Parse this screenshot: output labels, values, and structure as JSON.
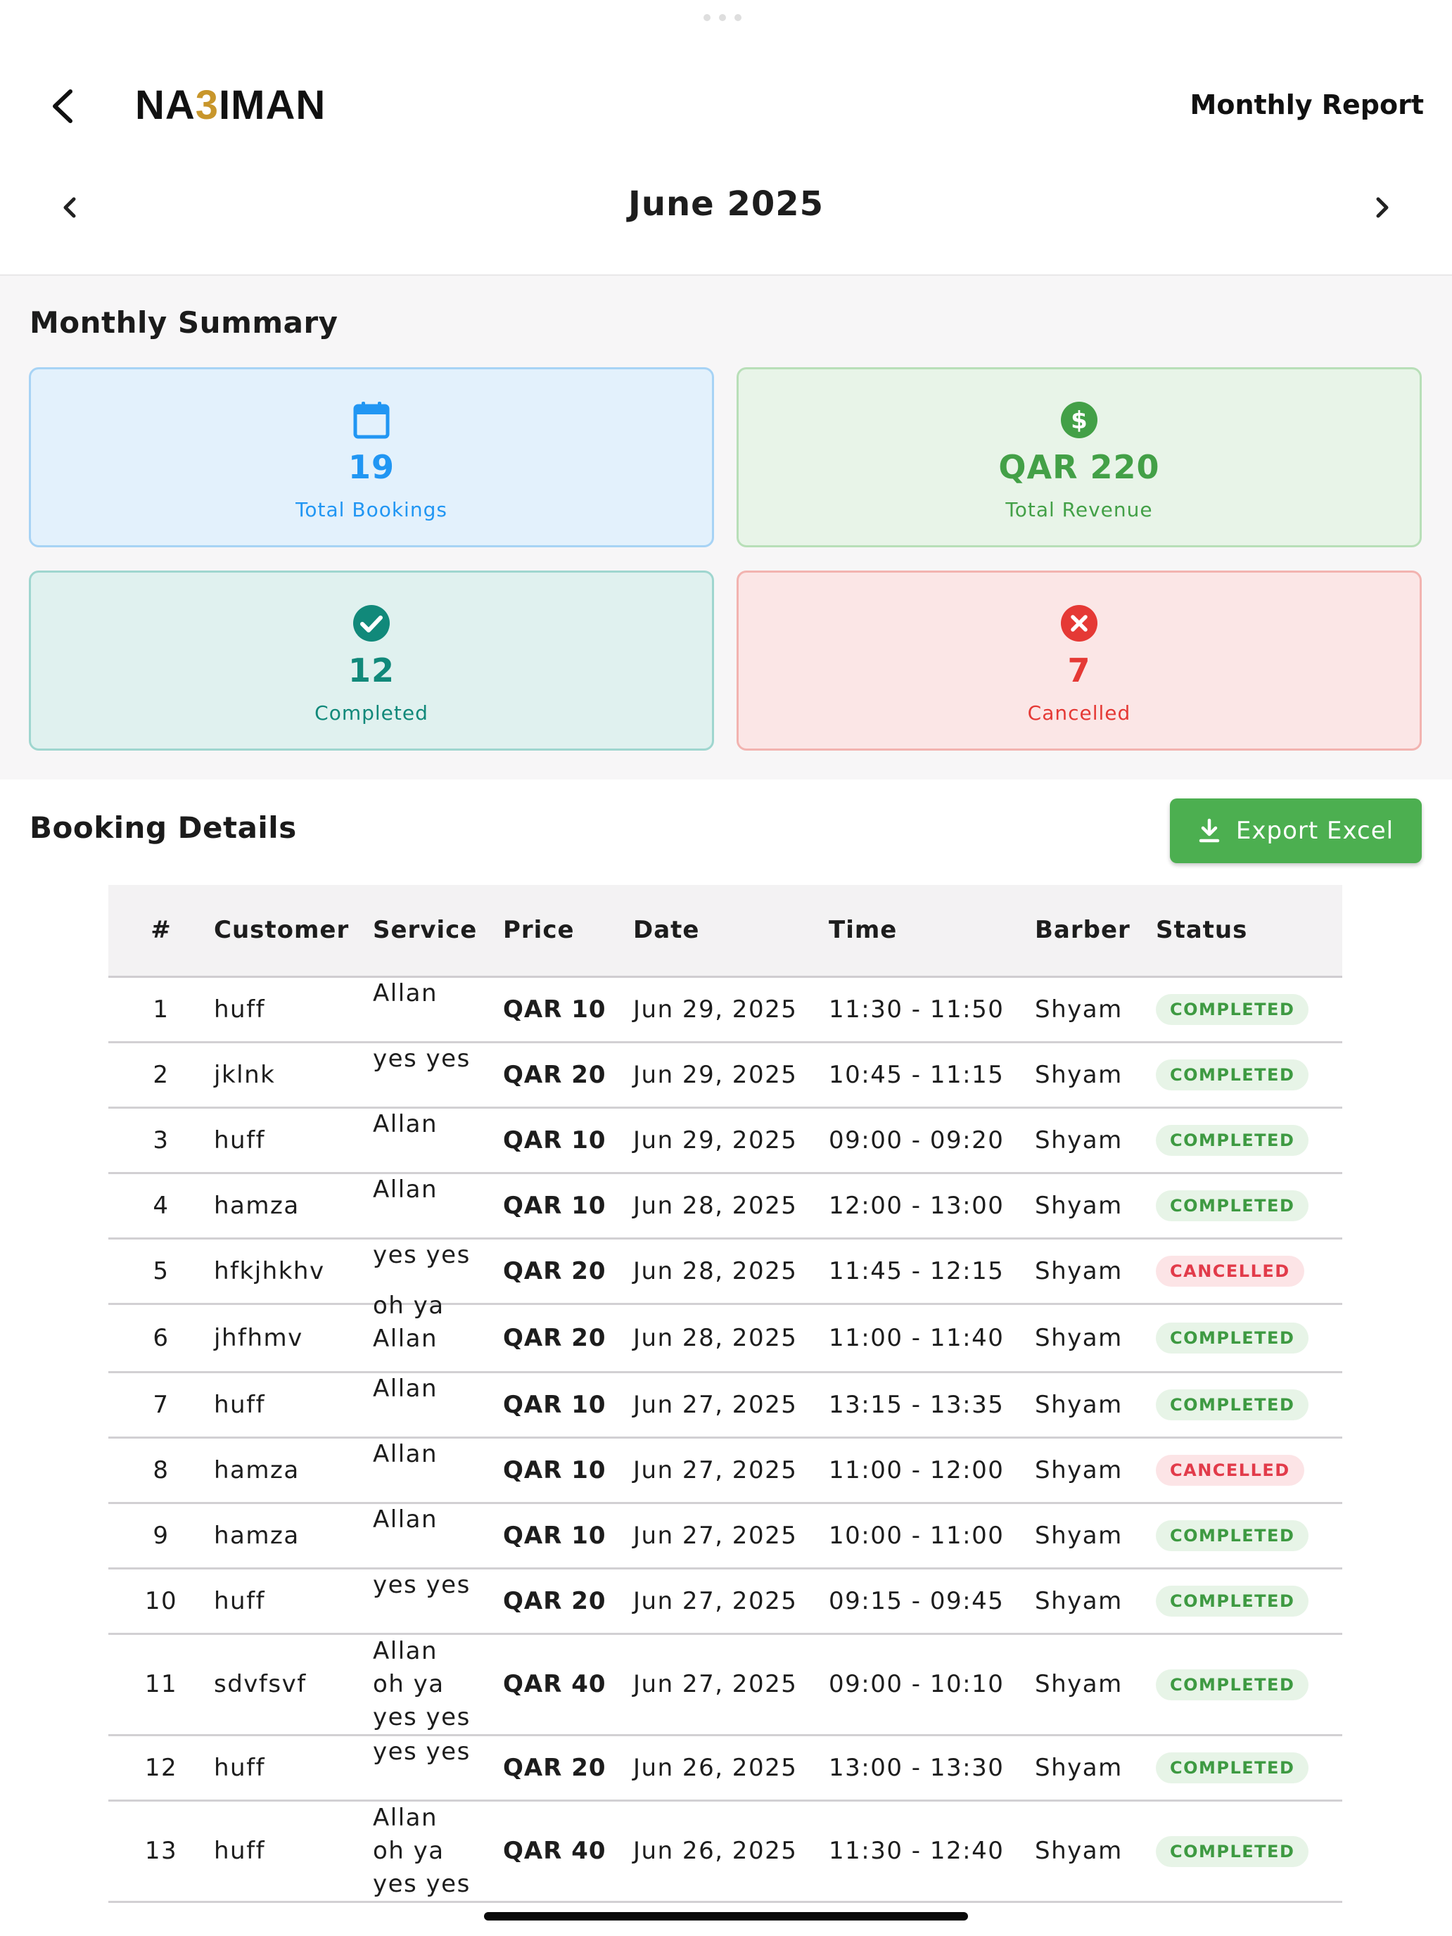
{
  "app": {
    "brand_prefix": "NA",
    "brand_accent": "3",
    "brand_suffix": "IMAN",
    "page_title": "Monthly Report"
  },
  "month": {
    "label": "June 2025"
  },
  "summary": {
    "title": "Monthly Summary",
    "total_bookings": {
      "value": "19",
      "label": "Total Bookings",
      "icon": "calendar-icon"
    },
    "total_revenue": {
      "value": "QAR 220",
      "label": "Total Revenue",
      "icon": "dollar-circle-icon"
    },
    "completed": {
      "value": "12",
      "label": "Completed",
      "icon": "check-circle-icon"
    },
    "cancelled": {
      "value": "7",
      "label": "Cancelled",
      "icon": "x-circle-icon"
    }
  },
  "details": {
    "title": "Booking Details",
    "export_label": "Export Excel",
    "columns": [
      "#",
      "Customer",
      "Service",
      "Price",
      "Date",
      "Time",
      "Barber",
      "Status"
    ],
    "rows": [
      {
        "num": "1",
        "customer": "huff",
        "service": [
          "Allan"
        ],
        "price": "QAR 10",
        "date": "Jun 29, 2025",
        "time": "11:30 - 11:50",
        "barber": "Shyam",
        "status": "COMPLETED"
      },
      {
        "num": "2",
        "customer": "jklnk",
        "service": [
          "yes yes"
        ],
        "price": "QAR 20",
        "date": "Jun 29, 2025",
        "time": "10:45 - 11:15",
        "barber": "Shyam",
        "status": "COMPLETED"
      },
      {
        "num": "3",
        "customer": "huff",
        "service": [
          "Allan"
        ],
        "price": "QAR 10",
        "date": "Jun 29, 2025",
        "time": "09:00 - 09:20",
        "barber": "Shyam",
        "status": "COMPLETED"
      },
      {
        "num": "4",
        "customer": "hamza",
        "service": [
          "Allan"
        ],
        "price": "QAR 10",
        "date": "Jun 28, 2025",
        "time": "12:00 - 13:00",
        "barber": "Shyam",
        "status": "COMPLETED"
      },
      {
        "num": "5",
        "customer": "hfkjhkhv",
        "service": [
          "yes yes"
        ],
        "price": "QAR 20",
        "date": "Jun 28, 2025",
        "time": "11:45 - 12:15",
        "barber": "Shyam",
        "status": "CANCELLED"
      },
      {
        "num": "6",
        "customer": "jhfhmv",
        "service": [
          "oh ya",
          "Allan"
        ],
        "price": "QAR 20",
        "date": "Jun 28, 2025",
        "time": "11:00 - 11:40",
        "barber": "Shyam",
        "status": "COMPLETED"
      },
      {
        "num": "7",
        "customer": "huff",
        "service": [
          "Allan"
        ],
        "price": "QAR 10",
        "date": "Jun 27, 2025",
        "time": "13:15 - 13:35",
        "barber": "Shyam",
        "status": "COMPLETED"
      },
      {
        "num": "8",
        "customer": "hamza",
        "service": [
          "Allan"
        ],
        "price": "QAR 10",
        "date": "Jun 27, 2025",
        "time": "11:00 - 12:00",
        "barber": "Shyam",
        "status": "CANCELLED"
      },
      {
        "num": "9",
        "customer": "hamza",
        "service": [
          "Allan"
        ],
        "price": "QAR 10",
        "date": "Jun 27, 2025",
        "time": "10:00 - 11:00",
        "barber": "Shyam",
        "status": "COMPLETED"
      },
      {
        "num": "10",
        "customer": "huff",
        "service": [
          "yes yes"
        ],
        "price": "QAR 20",
        "date": "Jun 27, 2025",
        "time": "09:15 - 09:45",
        "barber": "Shyam",
        "status": "COMPLETED"
      },
      {
        "num": "11",
        "customer": "sdvfsvf",
        "service": [
          "Allan",
          "oh ya",
          "yes yes"
        ],
        "price": "QAR 40",
        "date": "Jun 27, 2025",
        "time": "09:00 - 10:10",
        "barber": "Shyam",
        "status": "COMPLETED"
      },
      {
        "num": "12",
        "customer": "huff",
        "service": [
          "yes yes"
        ],
        "price": "QAR 20",
        "date": "Jun 26, 2025",
        "time": "13:00 - 13:30",
        "barber": "Shyam",
        "status": "COMPLETED"
      },
      {
        "num": "13",
        "customer": "huff",
        "service": [
          "Allan",
          "oh ya",
          "yes yes"
        ],
        "price": "QAR 40",
        "date": "Jun 26, 2025",
        "time": "11:30 - 12:40",
        "barber": "Shyam",
        "status": "COMPLETED"
      }
    ]
  },
  "colors": {
    "primary_blue": "#2196f3",
    "revenue_green": "#43a047",
    "completed_teal": "#11897a",
    "cancelled_red": "#e53935",
    "export_button": "#4caf50",
    "brand_accent": "#c8962b"
  }
}
